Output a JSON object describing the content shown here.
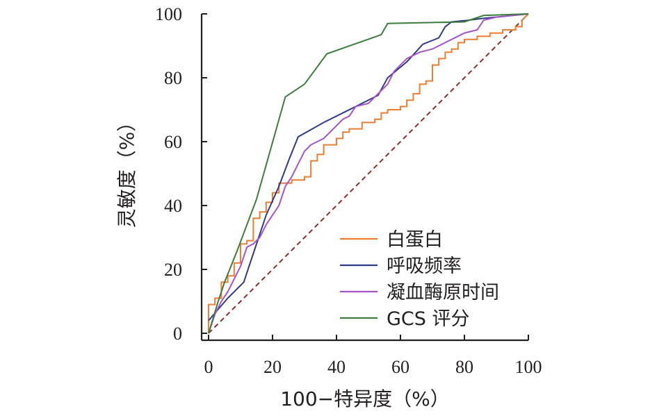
{
  "chart_data": {
    "type": "line",
    "xlabel": "100−特异度（%）",
    "ylabel": "灵敏度（%）",
    "xlim": [
      0,
      100
    ],
    "ylim": [
      0,
      100
    ],
    "x_ticks": [
      "0",
      "20",
      "40",
      "60",
      "80",
      "100"
    ],
    "y_ticks": [
      "0",
      "20",
      "40",
      "60",
      "80",
      "100"
    ],
    "legend_position": "bottom-right",
    "reference_line": {
      "x": [
        0,
        100
      ],
      "y": [
        0,
        100
      ],
      "color": "#8b2f2a",
      "style": "dashed"
    },
    "series": [
      {
        "name": "白蛋白",
        "color": "#ed7d31",
        "x": [
          0,
          0,
          2,
          2,
          4,
          4,
          6,
          6,
          8,
          8,
          10,
          10,
          12,
          12,
          14,
          14,
          16,
          16,
          18,
          18,
          20,
          20,
          22,
          22,
          26,
          26,
          30,
          30,
          32,
          32,
          34,
          34,
          36,
          36,
          40,
          40,
          42,
          42,
          44,
          44,
          48,
          48,
          52,
          52,
          54,
          54,
          56,
          56,
          60,
          60,
          62,
          62,
          64,
          64,
          66,
          66,
          68,
          68,
          70,
          70,
          72,
          72,
          74,
          74,
          76,
          76,
          78,
          78,
          80,
          80,
          84,
          84,
          88,
          88,
          92,
          92,
          96,
          96,
          98,
          98,
          100
        ],
        "y": [
          0,
          9,
          9,
          11,
          11,
          16,
          16,
          18,
          18,
          22,
          22,
          28,
          28,
          29,
          29,
          36,
          36,
          38,
          38,
          41,
          41,
          44,
          44,
          47,
          47,
          48,
          48,
          49,
          49,
          54,
          54,
          56,
          56,
          59,
          59,
          61,
          61,
          63,
          63,
          64,
          64,
          66,
          66,
          67,
          67,
          69,
          69,
          70,
          70,
          71,
          71,
          73,
          73,
          75,
          75,
          78,
          78,
          79,
          79,
          84,
          84,
          86,
          86,
          88,
          88,
          89,
          89,
          91,
          91,
          92,
          92,
          93,
          93,
          94,
          94,
          95,
          95,
          96,
          96,
          98,
          100
        ]
      },
      {
        "name": "呼吸频率",
        "color": "#2e3b87",
        "x": [
          0,
          6,
          11,
          14,
          18,
          22,
          25,
          28,
          36,
          43,
          53,
          56,
          62,
          67,
          72,
          74,
          76,
          81,
          85,
          100
        ],
        "y": [
          4,
          11,
          16,
          25,
          37,
          46,
          54,
          61.5,
          66,
          69.5,
          74.5,
          80,
          85,
          90.5,
          92.5,
          96,
          97.5,
          98,
          98.5,
          100
        ]
      },
      {
        "name": "凝血酶原时间",
        "color": "#a553c9",
        "x": [
          0,
          2,
          4,
          6,
          8,
          10,
          12,
          14,
          16,
          18,
          20,
          22,
          24,
          26,
          28,
          30,
          32,
          34,
          36,
          38,
          40,
          42,
          44,
          46,
          50,
          52,
          54,
          56,
          58,
          60,
          62,
          64,
          66,
          70,
          72,
          74,
          78,
          80,
          84,
          86,
          90,
          100
        ],
        "y": [
          0,
          6,
          10,
          13,
          17,
          21,
          27,
          28,
          30,
          34,
          37,
          40,
          46,
          49,
          53,
          57,
          59,
          60,
          61,
          63,
          65,
          67,
          68,
          71,
          72,
          74,
          76,
          78,
          82,
          84,
          86,
          87,
          88,
          89,
          90,
          91,
          93,
          94,
          95,
          98,
          99,
          100
        ]
      },
      {
        "name": "GCS 评分",
        "color": "#3c7d3c",
        "x": [
          0,
          3,
          5,
          9,
          15,
          24,
          30,
          37,
          54,
          56,
          80,
          86,
          100
        ],
        "y": [
          0,
          10,
          16,
          26,
          42,
          74,
          78,
          87.5,
          93.5,
          97,
          97.5,
          99.5,
          100
        ]
      }
    ]
  }
}
